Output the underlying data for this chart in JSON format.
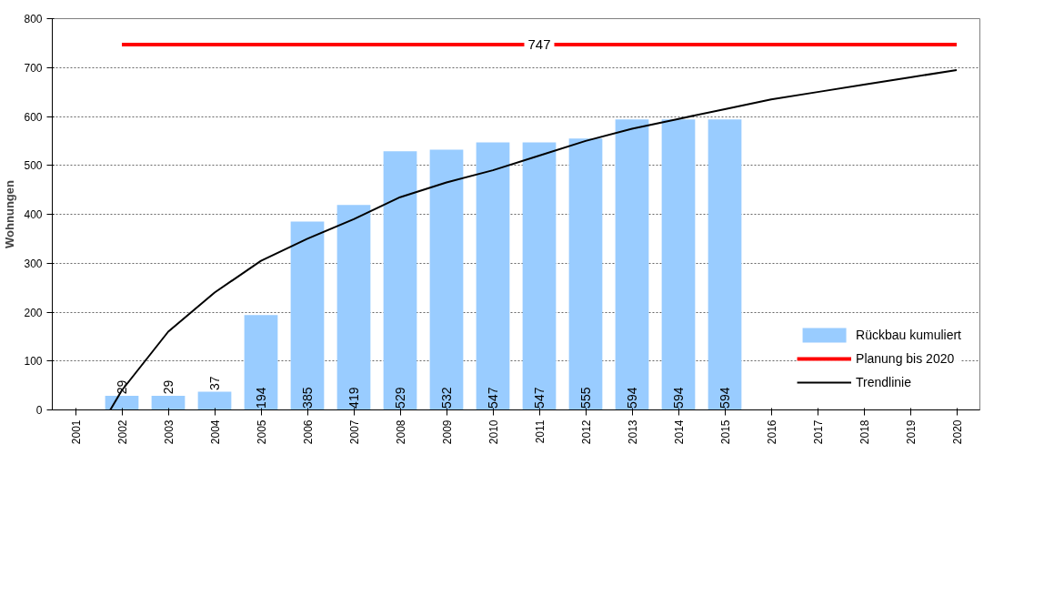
{
  "chart_data": {
    "type": "bar",
    "ylabel": "Wohnungen",
    "xlim": [
      2000.5,
      2020.5
    ],
    "xticks": [
      2001,
      2002,
      2003,
      2004,
      2005,
      2006,
      2007,
      2008,
      2009,
      2010,
      2011,
      2012,
      2013,
      2014,
      2015,
      2016,
      2017,
      2018,
      2019,
      2020
    ],
    "ylim": [
      0,
      800
    ],
    "yticks": [
      0,
      100,
      200,
      300,
      400,
      500,
      600,
      700,
      800
    ],
    "grid": "y",
    "legend": "bottom right",
    "series": [
      {
        "name": "Rückbau kumuliert",
        "color": "#99ccff",
        "x": [
          2002,
          2003,
          2004,
          2005,
          2006,
          2007,
          2008,
          2009,
          2010,
          2011,
          2012,
          2013,
          2014,
          2015
        ],
        "values": [
          29,
          29,
          37,
          194,
          385,
          419,
          529,
          532,
          547,
          547,
          555,
          594,
          594,
          594
        ],
        "value_labels": [
          "29",
          "29",
          "37",
          "194",
          "385",
          "419",
          "529",
          "532",
          "547",
          "547",
          "555",
          "594",
          "594",
          "594"
        ]
      },
      {
        "name": "Planung bis 2020",
        "type": "line",
        "color": "#ff0000",
        "x": [
          2002,
          2020
        ],
        "values": [
          747,
          747
        ]
      },
      {
        "name": "Trendlinie",
        "type": "line",
        "color": "#000000",
        "x": [
          2001.75,
          2002,
          2003,
          2004,
          2005,
          2006,
          2007,
          2008,
          2009,
          2010,
          2011,
          2012,
          2013,
          2014,
          2015,
          2016,
          2017,
          2018,
          2019,
          2020
        ],
        "values": [
          0,
          40,
          160,
          240,
          305,
          350,
          390,
          435,
          465,
          490,
          520,
          550,
          575,
          595,
          615,
          635,
          650,
          665,
          680,
          695
        ]
      }
    ],
    "annotations": [
      {
        "text": "747",
        "x": 2011,
        "y": 747
      }
    ]
  }
}
